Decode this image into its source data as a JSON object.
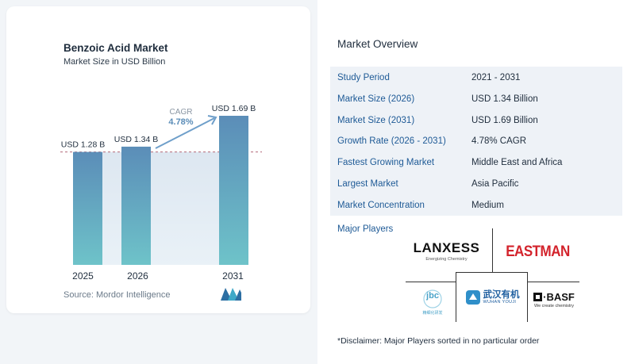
{
  "chart": {
    "title": "Benzoic Acid Market",
    "subtitle": "Market Size in USD Billion",
    "source": "Source:  Mordor Intelligence",
    "cagr_label": "CAGR",
    "cagr_value": "4.78%"
  },
  "chart_data": {
    "type": "bar",
    "categories": [
      "2025",
      "2026",
      "2031"
    ],
    "values": [
      1.28,
      1.34,
      1.69
    ],
    "data_labels": [
      "USD 1.28 B",
      "USD 1.34 B",
      "USD 1.69 B"
    ],
    "title": "Benzoic Acid Market",
    "subtitle": "Market Size in USD Billion",
    "ylim": [
      0,
      1.69
    ],
    "grid": false,
    "bar_color_top": "#5b8db8",
    "bar_color_bottom": "#6ec3c9"
  },
  "overview": {
    "title": "Market Overview",
    "rows": [
      {
        "key": "Study Period",
        "value": "2021 - 2031"
      },
      {
        "key": "Market Size (2026)",
        "value": "USD 1.34 Billion"
      },
      {
        "key": "Market Size (2031)",
        "value": "USD 1.69 Billion"
      },
      {
        "key": "Growth Rate (2026 - 2031)",
        "value": "4.78% CAGR"
      },
      {
        "key": "Fastest Growing Market",
        "value": "Middle East and Africa"
      },
      {
        "key": "Largest Market",
        "value": "Asia Pacific"
      },
      {
        "key": "Market Concentration",
        "value": "Medium"
      }
    ],
    "players_label": "Major Players",
    "disclaimer": "*Disclaimer: Major Players sorted in no particular order"
  },
  "players": {
    "lanxess": {
      "name": "LANXESS",
      "tagline": "Energizing Chemistry"
    },
    "eastman": {
      "name": "EASTMAN"
    },
    "jbc": {
      "name": "jbc",
      "sub": "精细化研发"
    },
    "wuhan": {
      "name": "武汉有机",
      "sub": "WUHAN  YOUJI"
    },
    "basf": {
      "name": "BASF",
      "tagline": "We create chemistry"
    }
  }
}
